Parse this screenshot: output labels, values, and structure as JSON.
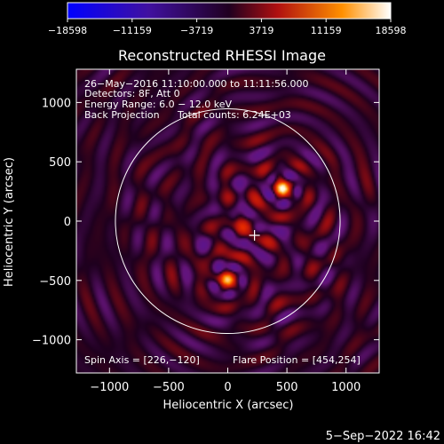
{
  "chart_data": {
    "type": "heatmap",
    "title": "Reconstructed RHESSI Image",
    "xlabel": "Heliocentric X (arcsec)",
    "ylabel": "Heliocentric Y (arcsec)",
    "xlim": [
      -1280,
      1280
    ],
    "ylim": [
      -1280,
      1280
    ],
    "x_ticks": [
      -1000,
      -500,
      0,
      500,
      1000
    ],
    "y_ticks": [
      1000,
      500,
      0,
      -500,
      -1000
    ],
    "x_tick_labels": [
      "−1000",
      "−500",
      "0",
      "500",
      "1000"
    ],
    "y_tick_labels": [
      "1000",
      "500",
      "0",
      "−500",
      "−1000"
    ],
    "colorbar": {
      "min": -18598,
      "max": 18598,
      "ticks": [
        -18598,
        -11159,
        -3719,
        3719,
        11159,
        18598
      ],
      "tick_labels": [
        "−18598",
        "−11159",
        "−3719",
        "3719",
        "11159",
        "18598"
      ]
    },
    "annotations": [
      "26−May−2016 11:10:00.000 to 11:11:56.000",
      "Detectors: 8F, Att 0",
      "Energy Range: 6.0 − 12.0 keV",
      "Back Projection",
      "Total counts: 6.24E+03"
    ],
    "spin_axis_label": "Spin Axis = [226,−120]",
    "flare_position_label": "Flare Position = [454,254]",
    "spin_axis": [
      226,
      -120
    ],
    "solar_disk_center": [
      0,
      0
    ],
    "solar_radius": 950,
    "sources": [
      {
        "x": 460,
        "y": 270,
        "peak": 18598
      },
      {
        "x": 0,
        "y": -490,
        "peak": 15500
      },
      {
        "x": 130,
        "y": -50,
        "peak": 8000
      }
    ],
    "footer_date": "5−Sep−2022 16:42"
  }
}
